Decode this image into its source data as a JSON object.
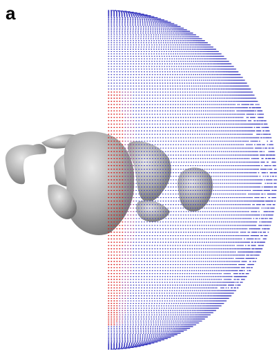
{
  "panel_label": "a"
}
